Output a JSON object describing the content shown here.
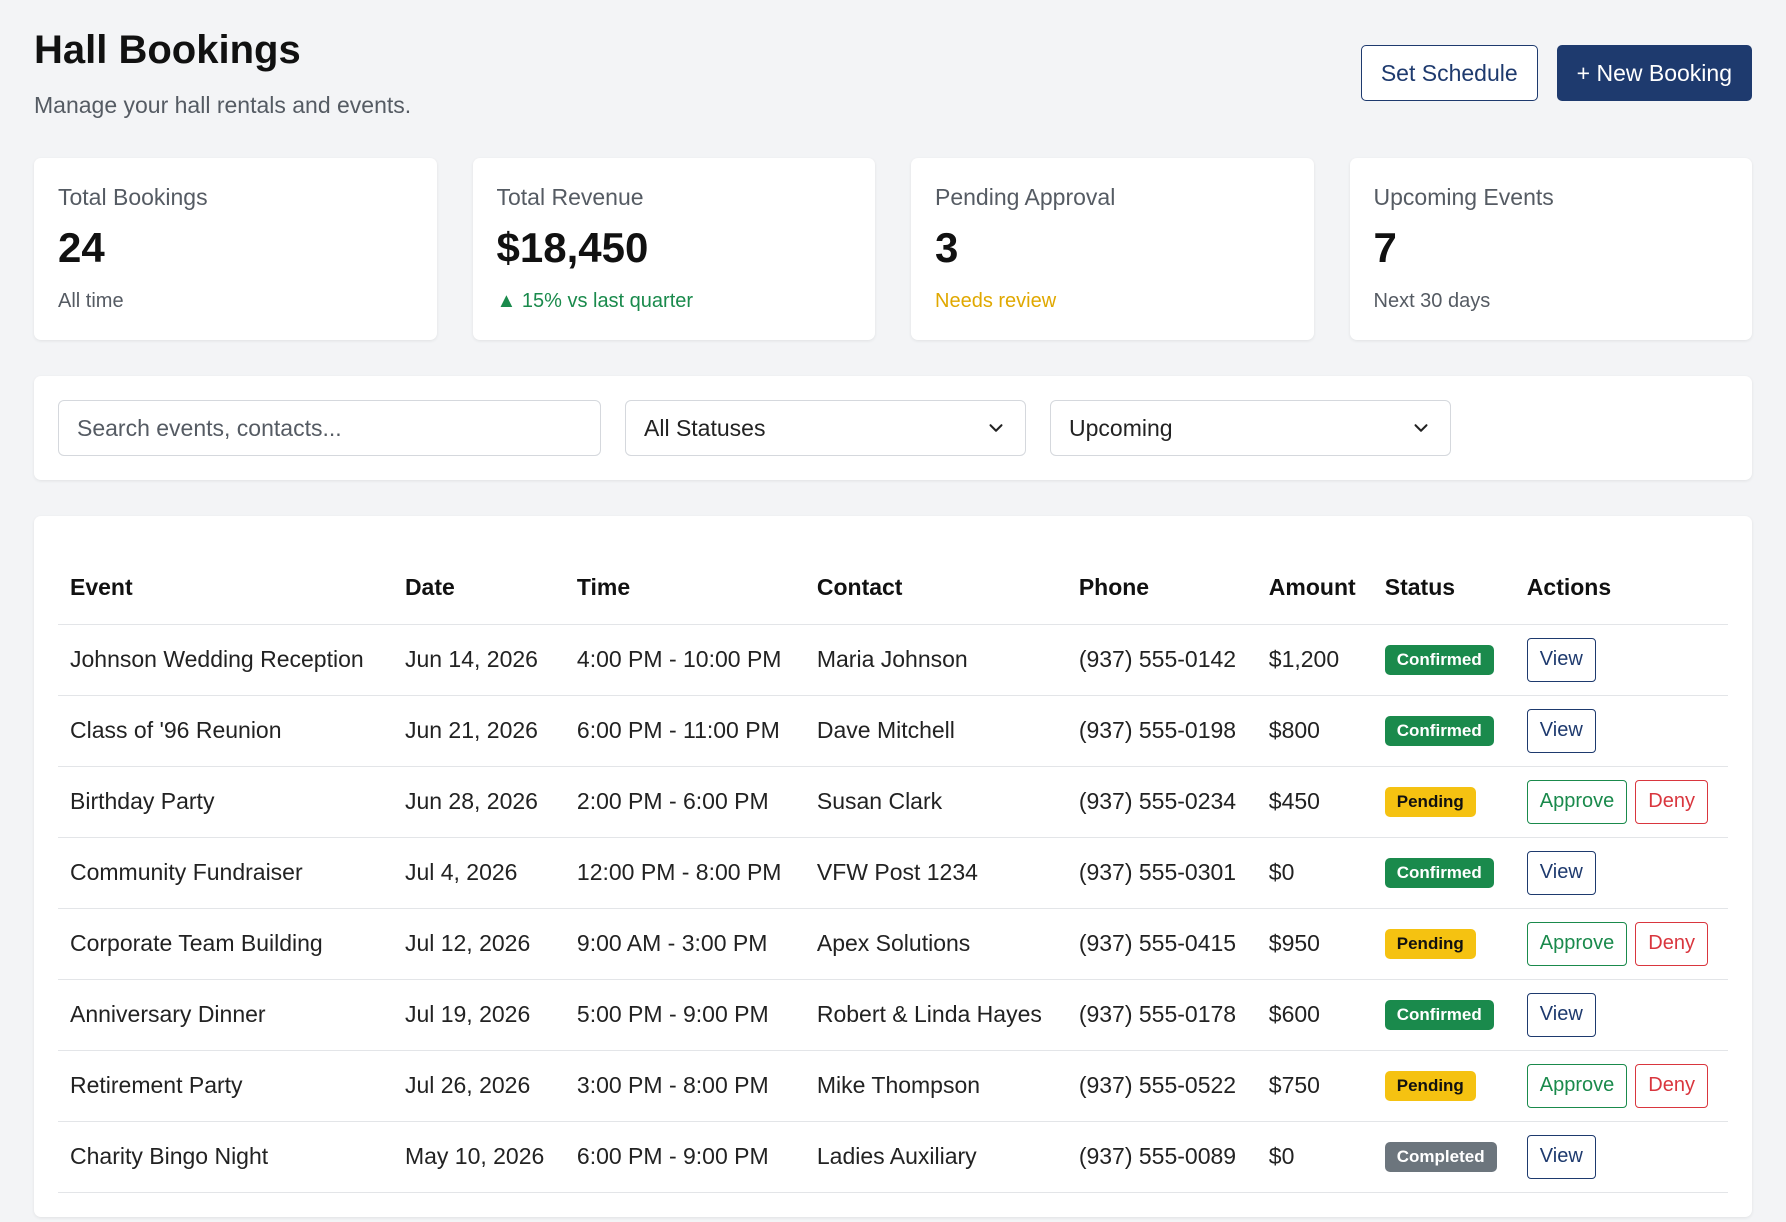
{
  "header": {
    "title": "Hall Bookings",
    "subtitle": "Manage your hall rentals and events.",
    "set_schedule_label": "Set Schedule",
    "new_booking_label": "+ New Booking"
  },
  "stats": [
    {
      "label": "Total Bookings",
      "value": "24",
      "note": "All time"
    },
    {
      "label": "Total Revenue",
      "value": "$18,450",
      "note": "▲ 15% vs last quarter"
    },
    {
      "label": "Pending Approval",
      "value": "3",
      "note": "Needs review"
    },
    {
      "label": "Upcoming Events",
      "value": "7",
      "note": "Next 30 days"
    }
  ],
  "filters": {
    "search_placeholder": "Search events, contacts...",
    "status_selected": "All Statuses",
    "range_selected": "Upcoming"
  },
  "table": {
    "columns": [
      "Event",
      "Date",
      "Time",
      "Contact",
      "Phone",
      "Amount",
      "Status",
      "Actions"
    ],
    "rows": [
      {
        "event": "Johnson Wedding Reception",
        "date": "Jun 14, 2026",
        "time": "4:00 PM - 10:00 PM",
        "contact": "Maria Johnson",
        "phone": "(937) 555-0142",
        "amount": "$1,200",
        "status": "Confirmed"
      },
      {
        "event": "Class of '96 Reunion",
        "date": "Jun 21, 2026",
        "time": "6:00 PM - 11:00 PM",
        "contact": "Dave Mitchell",
        "phone": "(937) 555-0198",
        "amount": "$800",
        "status": "Confirmed"
      },
      {
        "event": "Birthday Party",
        "date": "Jun 28, 2026",
        "time": "2:00 PM - 6:00 PM",
        "contact": "Susan Clark",
        "phone": "(937) 555-0234",
        "amount": "$450",
        "status": "Pending"
      },
      {
        "event": "Community Fundraiser",
        "date": "Jul 4, 2026",
        "time": "12:00 PM - 8:00 PM",
        "contact": "VFW Post 1234",
        "phone": "(937) 555-0301",
        "amount": "$0",
        "status": "Confirmed"
      },
      {
        "event": "Corporate Team Building",
        "date": "Jul 12, 2026",
        "time": "9:00 AM - 3:00 PM",
        "contact": "Apex Solutions",
        "phone": "(937) 555-0415",
        "amount": "$950",
        "status": "Pending"
      },
      {
        "event": "Anniversary Dinner",
        "date": "Jul 19, 2026",
        "time": "5:00 PM - 9:00 PM",
        "contact": "Robert & Linda Hayes",
        "phone": "(937) 555-0178",
        "amount": "$600",
        "status": "Confirmed"
      },
      {
        "event": "Retirement Party",
        "date": "Jul 26, 2026",
        "time": "3:00 PM - 8:00 PM",
        "contact": "Mike Thompson",
        "phone": "(937) 555-0522",
        "amount": "$750",
        "status": "Pending"
      },
      {
        "event": "Charity Bingo Night",
        "date": "May 10, 2026",
        "time": "6:00 PM - 9:00 PM",
        "contact": "Ladies Auxiliary",
        "phone": "(937) 555-0089",
        "amount": "$0",
        "status": "Completed"
      }
    ],
    "actions": {
      "view": "View",
      "approve": "Approve",
      "deny": "Deny"
    }
  },
  "colors": {
    "primary": "#1e3a6e",
    "confirmed": "#1a8a4c",
    "pending": "#f5c211",
    "completed": "#6c757d",
    "deny": "#d9363e"
  },
  "icons": {
    "select_chevron": "chevron-down-icon"
  }
}
